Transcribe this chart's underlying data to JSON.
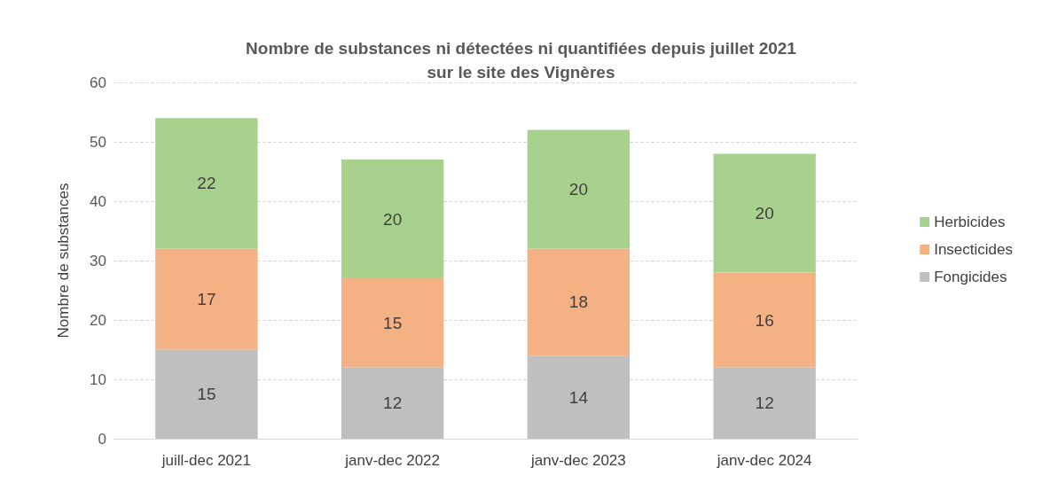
{
  "chart_data": {
    "type": "bar",
    "title": "Nombre de substances ni détectées ni quantifiées depuis juillet 2021\nsur le site des Vignères",
    "ylabel": "Nombre de substances",
    "categories": [
      "juill-dec 2021",
      "janv-dec 2022",
      "janv-dec 2023",
      "janv-dec 2024"
    ],
    "stacked": true,
    "series": [
      {
        "name": "Fongicides",
        "color": "#bfbfbf",
        "values": [
          15,
          12,
          14,
          12
        ]
      },
      {
        "name": "Insecticides",
        "color": "#f4b183",
        "values": [
          17,
          15,
          18,
          16
        ]
      },
      {
        "name": "Herbicides",
        "color": "#a9d18e",
        "values": [
          22,
          20,
          20,
          20
        ]
      }
    ],
    "ylim": [
      0,
      60
    ],
    "yticks": [
      0,
      10,
      20,
      30,
      40,
      50,
      60
    ],
    "grid": "y",
    "legend": "right",
    "data_labels": true
  }
}
